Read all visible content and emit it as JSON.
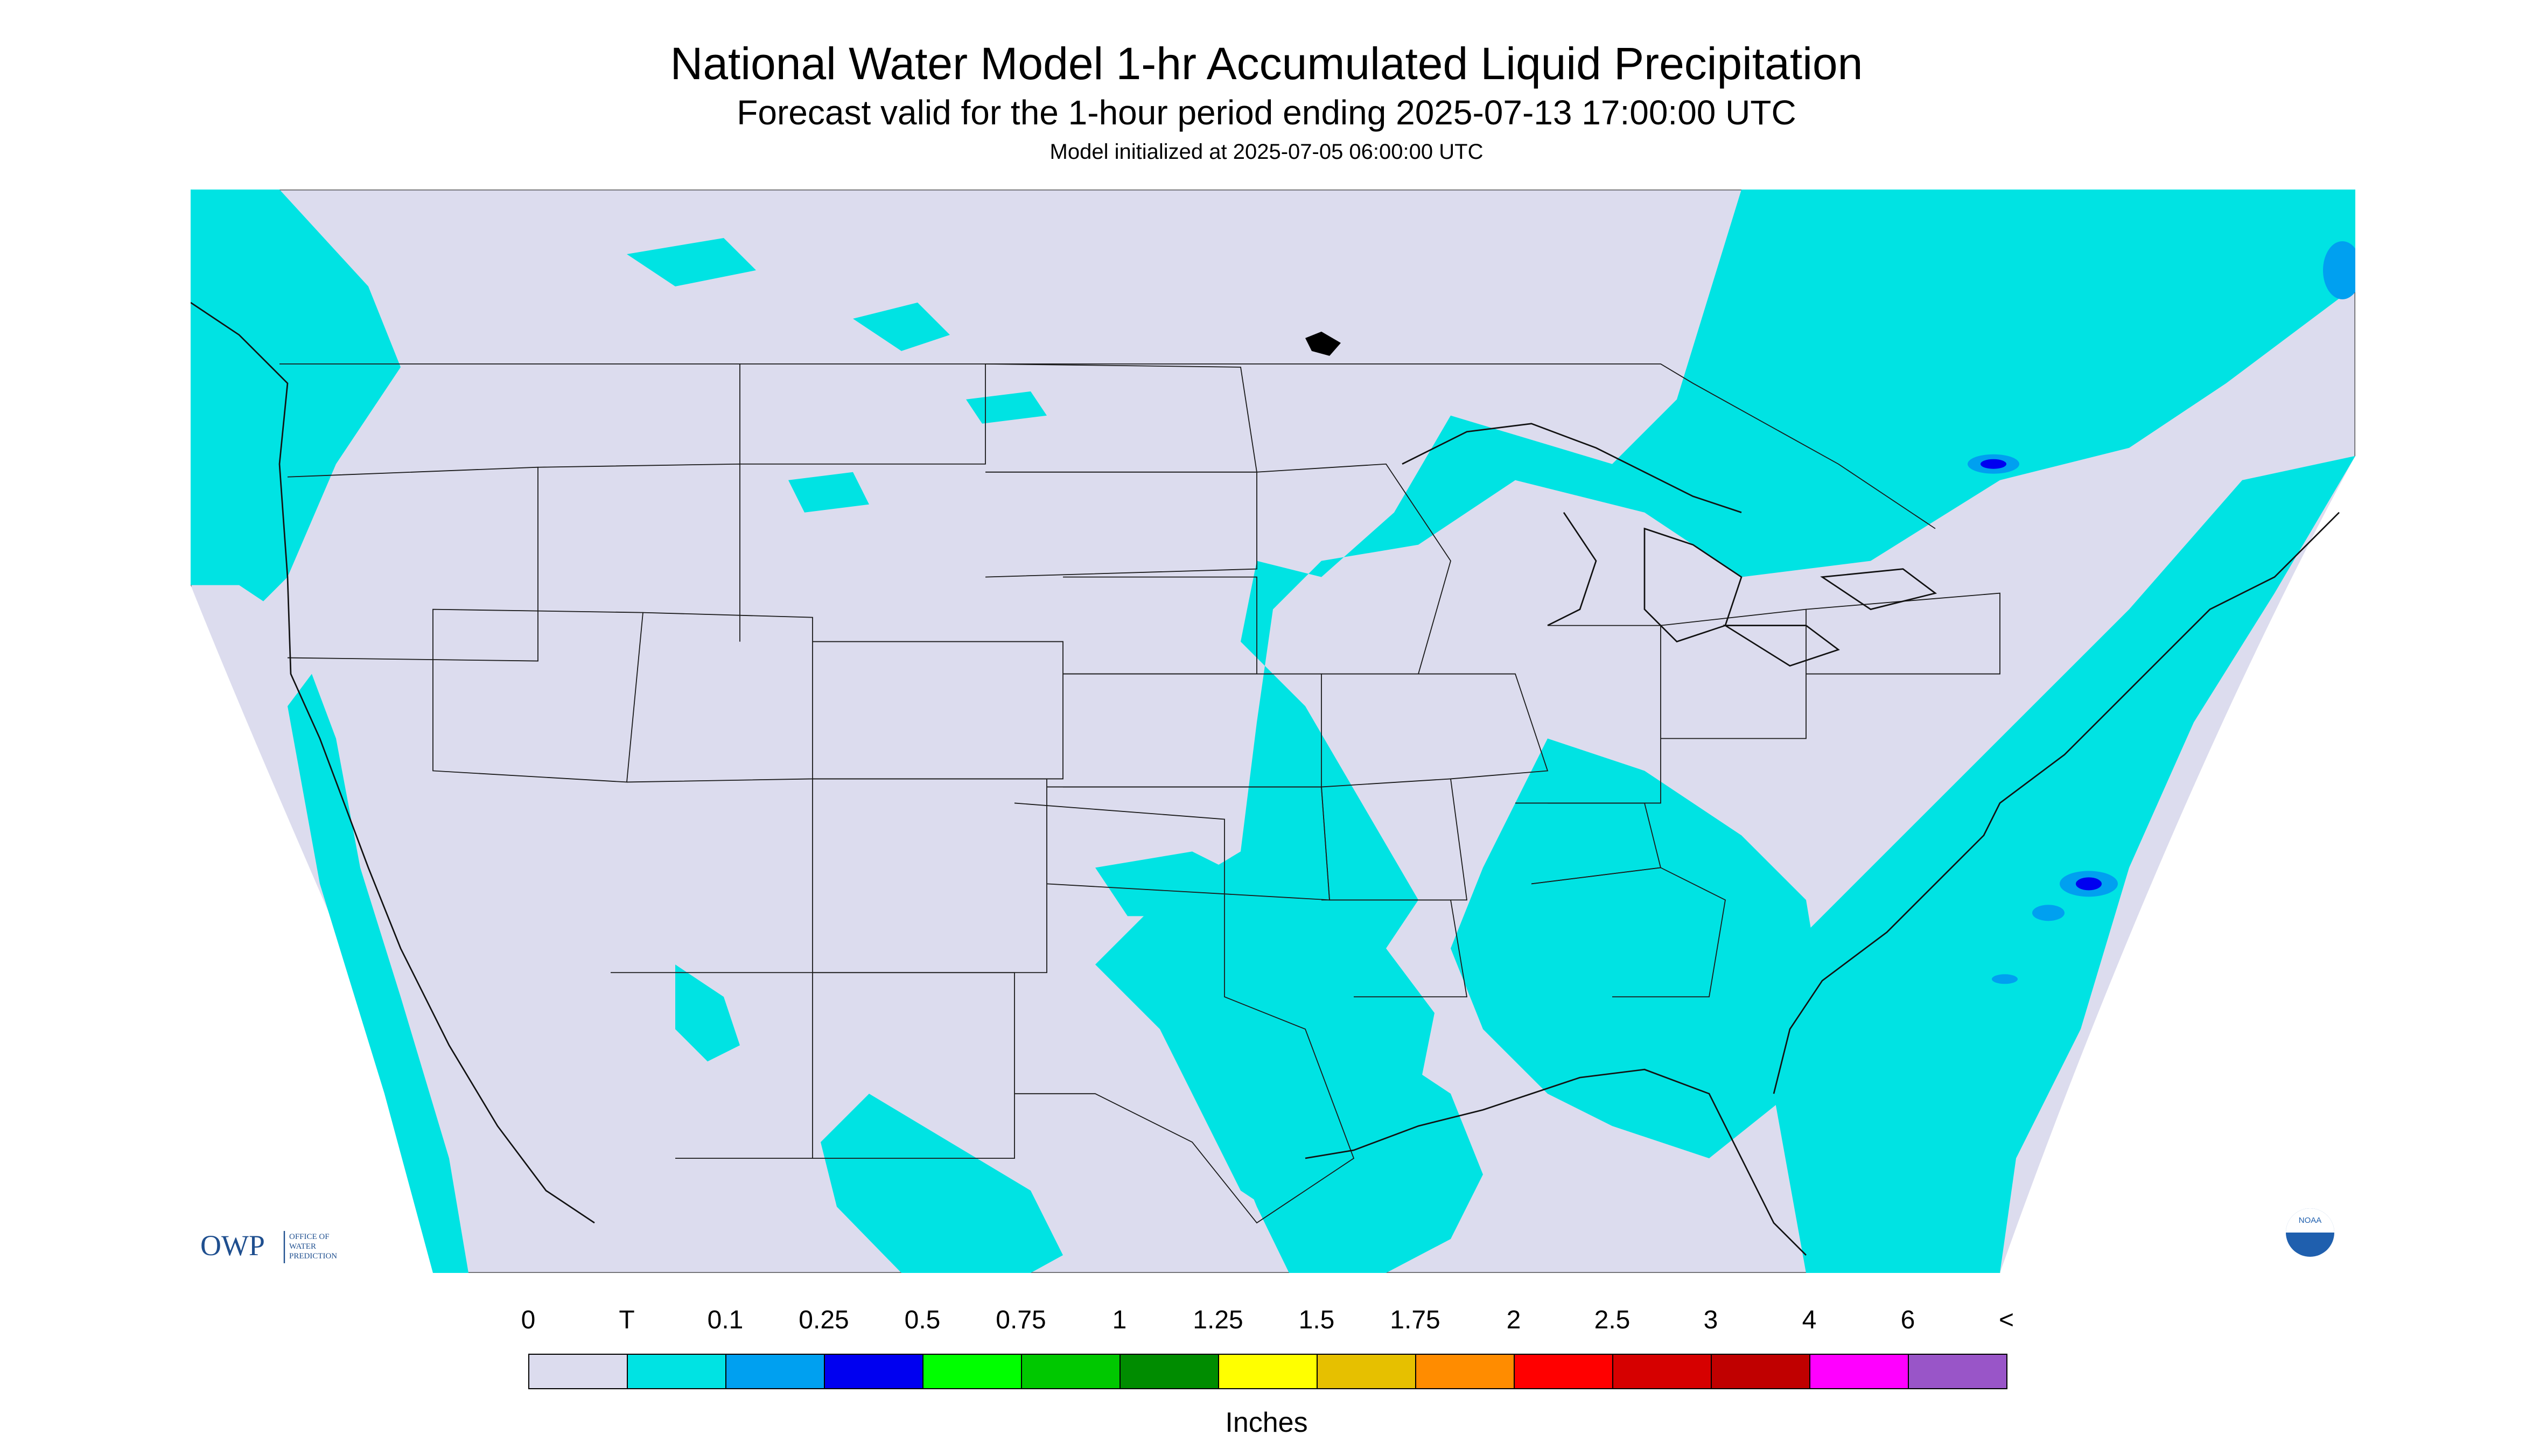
{
  "header": {
    "title": "National Water Model 1-hr Accumulated Liquid Precipitation",
    "subtitle": "Forecast valid for the 1-hour period ending 2025-07-13 17:00:00 UTC",
    "init": "Model initialized at 2025-07-05 06:00:00 UTC"
  },
  "logos": {
    "owp_text": "OWP",
    "owp_line1": "OFFICE OF",
    "owp_line2": "WATER",
    "owp_line3": "PREDICTION",
    "noaa_text": "NOAA"
  },
  "colors": {
    "background": "#dcdcee",
    "trace": "#00e3e3",
    "area_outside": "#ffffff",
    "borders": "#1a1a1a"
  },
  "legend": {
    "units": "Inches",
    "labels": [
      "0",
      "T",
      "0.1",
      "0.25",
      "0.5",
      "0.75",
      "1",
      "1.25",
      "1.5",
      "1.75",
      "2",
      "2.5",
      "3",
      "4",
      "6",
      "<"
    ],
    "colors": [
      "#dcdcee",
      "#00e3e3",
      "#00a0f0",
      "#0000f0",
      "#00ff00",
      "#00c800",
      "#008c00",
      "#ffff00",
      "#e6c000",
      "#ff8c00",
      "#ff0000",
      "#d60000",
      "#c00000",
      "#ff00ff",
      "#9955c8"
    ]
  }
}
